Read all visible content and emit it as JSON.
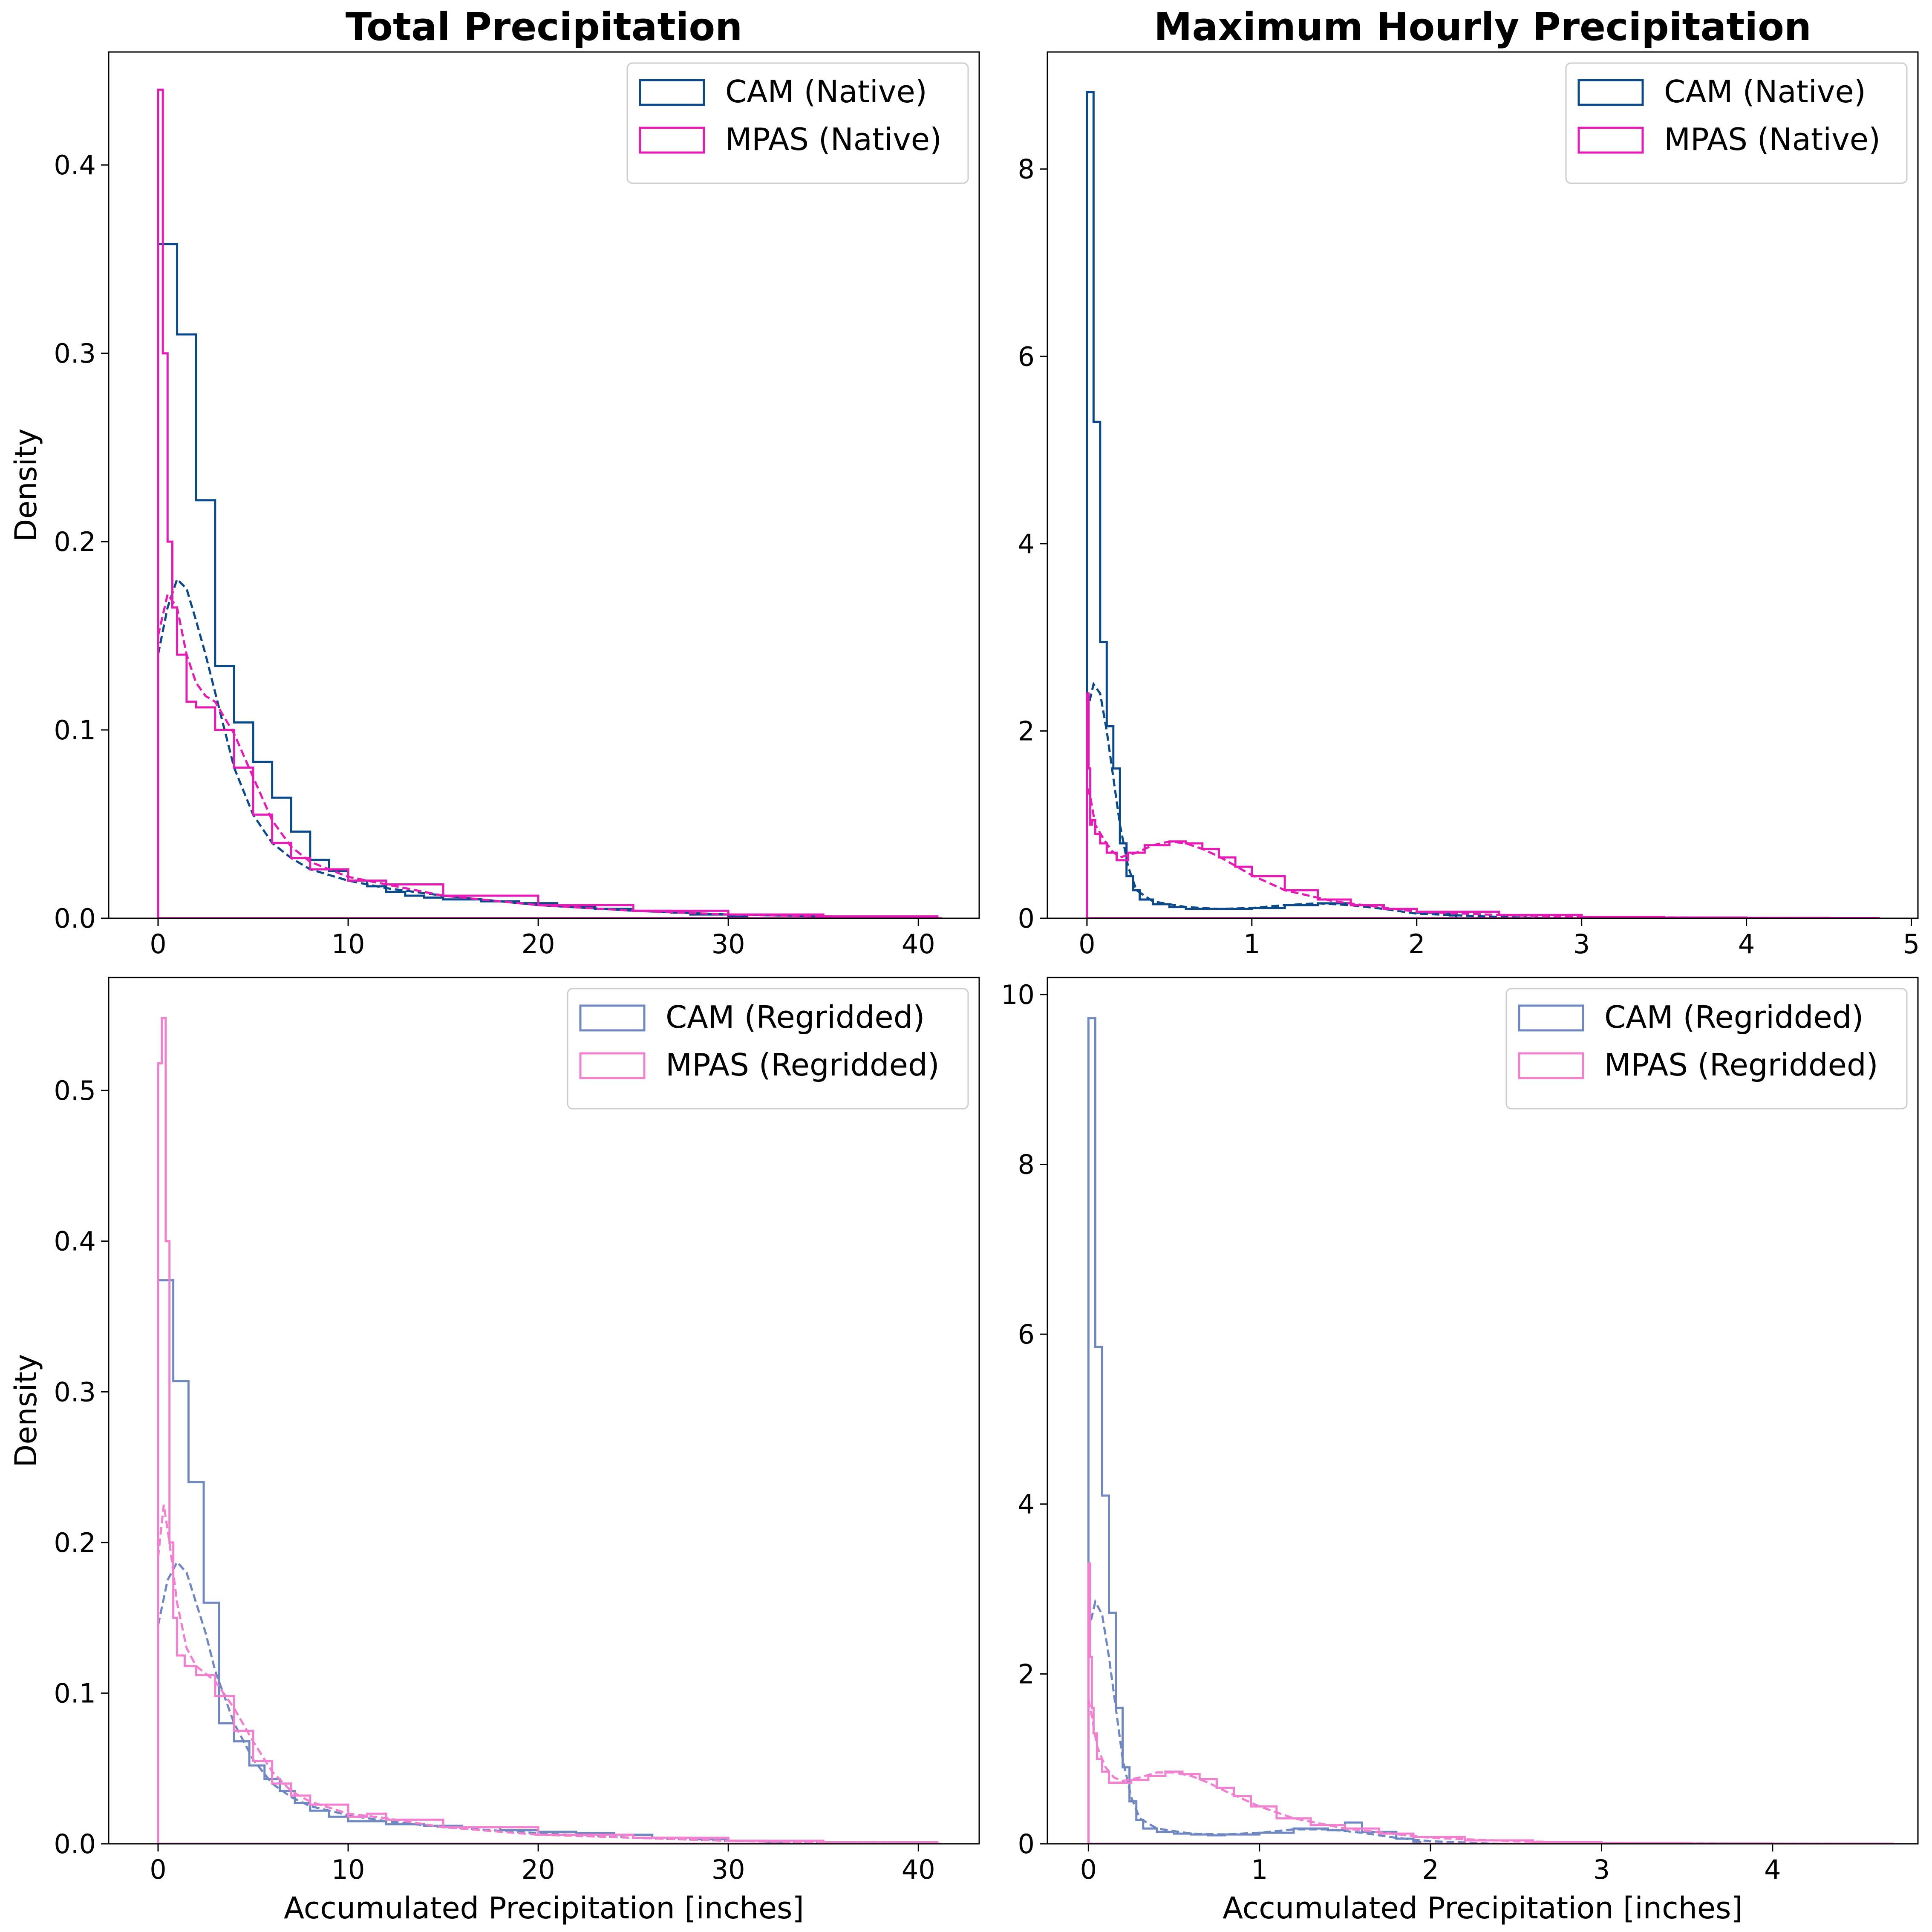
{
  "chart_data": [
    {
      "panel": "top-left",
      "type": "histogram",
      "title": "Total Precipitation",
      "xlabel": "",
      "ylabel": "Density",
      "xlim": [
        -2.6,
        43.2
      ],
      "ylim": [
        0,
        0.46
      ],
      "xticks": [
        0,
        10,
        20,
        30,
        40
      ],
      "yticks": [
        0.0,
        0.1,
        0.2,
        0.3,
        0.4
      ],
      "legend_position": "top-right",
      "grid": false,
      "series": [
        {
          "name": "CAM (Native)",
          "color": "#0b4a8a",
          "bin_width": 1.0,
          "hist_x": [
            0,
            1,
            2,
            3,
            4,
            5,
            6,
            7,
            8,
            9,
            10,
            11,
            12,
            13,
            14,
            15,
            16,
            17,
            18,
            19,
            20,
            21,
            22,
            23,
            24,
            25,
            26,
            27,
            28,
            29,
            30
          ],
          "hist_y": [
            0.358,
            0.31,
            0.222,
            0.134,
            0.104,
            0.083,
            0.064,
            0.046,
            0.031,
            0.025,
            0.02,
            0.017,
            0.014,
            0.012,
            0.011,
            0.01,
            0.01,
            0.009,
            0.009,
            0.008,
            0.008,
            0.007,
            0.006,
            0.005,
            0.005,
            0.004,
            0.004,
            0.003,
            0.002,
            0.002,
            0.001
          ],
          "kde_x": [
            0,
            0.5,
            1,
            1.5,
            2,
            2.5,
            3,
            4,
            5,
            6,
            7,
            8,
            10,
            12,
            15,
            20,
            25,
            30,
            35,
            41
          ],
          "kde_y": [
            0.14,
            0.165,
            0.18,
            0.175,
            0.158,
            0.14,
            0.12,
            0.08,
            0.055,
            0.04,
            0.032,
            0.026,
            0.02,
            0.016,
            0.012,
            0.007,
            0.004,
            0.002,
            0.001,
            0
          ]
        },
        {
          "name": "MPAS (Native)",
          "color": "#e61ab5",
          "bin_width": 0.25,
          "hist_x": [
            0,
            0.25,
            0.5,
            0.75,
            1,
            1.5,
            2,
            3,
            4,
            5,
            6,
            7,
            8,
            10,
            12,
            15,
            20,
            25,
            30,
            35,
            41
          ],
          "hist_y": [
            0.44,
            0.3,
            0.2,
            0.165,
            0.14,
            0.115,
            0.112,
            0.1,
            0.08,
            0.055,
            0.04,
            0.032,
            0.026,
            0.02,
            0.018,
            0.012,
            0.007,
            0.004,
            0.002,
            0.001,
            0
          ],
          "kde_x": [
            0,
            0.5,
            1,
            1.5,
            2,
            2.5,
            3,
            4,
            5,
            6,
            7,
            8,
            10,
            12,
            15,
            20,
            25,
            30,
            35,
            41
          ],
          "kde_y": [
            0.15,
            0.172,
            0.165,
            0.14,
            0.125,
            0.118,
            0.115,
            0.098,
            0.075,
            0.052,
            0.038,
            0.03,
            0.022,
            0.018,
            0.012,
            0.007,
            0.004,
            0.002,
            0.001,
            0
          ]
        }
      ]
    },
    {
      "panel": "top-right",
      "type": "histogram",
      "title": "Maximum Hourly Precipitation",
      "xlabel": "",
      "ylabel": "",
      "xlim": [
        -0.24,
        5.04
      ],
      "ylim": [
        0,
        9.25
      ],
      "xticks": [
        0,
        1,
        2,
        3,
        4,
        5
      ],
      "yticks": [
        0,
        2,
        4,
        6,
        8
      ],
      "legend_position": "top-right",
      "grid": false,
      "series": [
        {
          "name": "CAM (Native)",
          "color": "#0b4a8a",
          "bin_width": 0.04,
          "hist_x": [
            0,
            0.04,
            0.08,
            0.12,
            0.16,
            0.2,
            0.24,
            0.28,
            0.32,
            0.4,
            0.5,
            0.6,
            0.7,
            0.8,
            1.0,
            1.2,
            1.4,
            1.6,
            1.8,
            2.0,
            2.2
          ],
          "hist_y": [
            8.82,
            5.3,
            2.95,
            2.05,
            1.6,
            0.8,
            0.45,
            0.3,
            0.2,
            0.15,
            0.12,
            0.1,
            0.1,
            0.1,
            0.11,
            0.14,
            0.16,
            0.14,
            0.1,
            0.06,
            0.03
          ],
          "kde_x": [
            0,
            0.04,
            0.08,
            0.12,
            0.16,
            0.2,
            0.25,
            0.3,
            0.4,
            0.6,
            0.8,
            1.0,
            1.2,
            1.4,
            1.6,
            1.8,
            2.0,
            2.4,
            2.8
          ],
          "kde_y": [
            2.2,
            2.5,
            2.4,
            2.0,
            1.5,
            1.0,
            0.55,
            0.3,
            0.18,
            0.12,
            0.1,
            0.11,
            0.14,
            0.16,
            0.14,
            0.1,
            0.05,
            0.02,
            0
          ]
        },
        {
          "name": "MPAS (Native)",
          "color": "#e61ab5",
          "bin_width": 0.01,
          "hist_x": [
            0,
            0.01,
            0.02,
            0.03,
            0.05,
            0.08,
            0.12,
            0.18,
            0.25,
            0.35,
            0.5,
            0.6,
            0.7,
            0.8,
            0.9,
            1.0,
            1.2,
            1.4,
            1.6,
            1.8,
            2.0,
            2.5,
            3.0,
            3.5,
            4.0,
            4.5,
            4.8
          ],
          "hist_y": [
            2.4,
            1.6,
            1.0,
            1.05,
            0.9,
            0.8,
            0.7,
            0.62,
            0.7,
            0.78,
            0.82,
            0.8,
            0.74,
            0.65,
            0.55,
            0.45,
            0.3,
            0.2,
            0.14,
            0.1,
            0.07,
            0.035,
            0.015,
            0.008,
            0.004,
            0.002,
            0
          ],
          "kde_x": [
            0,
            0.02,
            0.05,
            0.1,
            0.15,
            0.2,
            0.3,
            0.4,
            0.5,
            0.6,
            0.7,
            0.8,
            1.0,
            1.2,
            1.5,
            2.0,
            2.5,
            3.0,
            4.0,
            4.8
          ],
          "kde_y": [
            1.4,
            1.3,
            1.0,
            0.85,
            0.72,
            0.65,
            0.7,
            0.78,
            0.82,
            0.8,
            0.74,
            0.66,
            0.46,
            0.3,
            0.18,
            0.07,
            0.035,
            0.015,
            0.004,
            0
          ]
        }
      ]
    },
    {
      "panel": "bottom-left",
      "type": "histogram",
      "title": "",
      "xlabel": "Accumulated Precipitation [inches]",
      "ylabel": "Density",
      "xlim": [
        -2.6,
        43.2
      ],
      "ylim": [
        0,
        0.575
      ],
      "xticks": [
        0,
        10,
        20,
        30,
        40
      ],
      "yticks": [
        0.0,
        0.1,
        0.2,
        0.3,
        0.4,
        0.5
      ],
      "legend_position": "top-right",
      "grid": false,
      "series": [
        {
          "name": "CAM (Regridded)",
          "color": "#6f88c2",
          "bin_width": 0.8,
          "hist_x": [
            0,
            0.8,
            1.6,
            2.4,
            3.2,
            4.0,
            4.8,
            5.6,
            6.4,
            7.2,
            8.0,
            9.0,
            10,
            12,
            14,
            16,
            18,
            20,
            22,
            24,
            26,
            28,
            30,
            32
          ],
          "hist_y": [
            0.374,
            0.307,
            0.24,
            0.16,
            0.08,
            0.068,
            0.052,
            0.043,
            0.035,
            0.027,
            0.022,
            0.018,
            0.015,
            0.013,
            0.012,
            0.011,
            0.009,
            0.008,
            0.007,
            0.006,
            0.004,
            0.003,
            0.002,
            0.001
          ],
          "kde_x": [
            0,
            0.5,
            1,
            1.5,
            2,
            2.5,
            3,
            4,
            5,
            6,
            7,
            8,
            10,
            12,
            15,
            20,
            25,
            30,
            35,
            41
          ],
          "kde_y": [
            0.145,
            0.175,
            0.187,
            0.18,
            0.16,
            0.14,
            0.115,
            0.08,
            0.056,
            0.04,
            0.031,
            0.025,
            0.019,
            0.015,
            0.011,
            0.007,
            0.004,
            0.002,
            0.001,
            0
          ]
        },
        {
          "name": "MPAS (Regridded)",
          "color": "#f27fcf",
          "bin_width": 0.2,
          "hist_x": [
            0,
            0.2,
            0.4,
            0.6,
            0.8,
            1.0,
            1.4,
            2.0,
            3.0,
            4.0,
            5.0,
            6.0,
            7.0,
            8.0,
            10,
            11,
            12,
            15,
            20,
            25,
            30,
            35,
            41
          ],
          "hist_y": [
            0.518,
            0.548,
            0.4,
            0.2,
            0.15,
            0.125,
            0.118,
            0.112,
            0.098,
            0.075,
            0.055,
            0.04,
            0.032,
            0.026,
            0.018,
            0.02,
            0.016,
            0.011,
            0.006,
            0.004,
            0.002,
            0.001,
            0
          ],
          "kde_x": [
            0,
            0.3,
            0.6,
            1,
            1.5,
            2,
            2.5,
            3,
            4,
            5,
            6,
            7,
            8,
            10,
            12,
            15,
            20,
            25,
            30,
            35,
            41
          ],
          "kde_y": [
            0.19,
            0.225,
            0.2,
            0.16,
            0.13,
            0.118,
            0.113,
            0.108,
            0.09,
            0.068,
            0.048,
            0.035,
            0.028,
            0.02,
            0.017,
            0.011,
            0.006,
            0.004,
            0.002,
            0.001,
            0
          ]
        }
      ]
    },
    {
      "panel": "bottom-right",
      "type": "histogram",
      "title": "",
      "xlabel": "Accumulated Precipitation [inches]",
      "ylabel": "",
      "xlim": [
        -0.24,
        4.85
      ],
      "ylim": [
        0,
        10.2
      ],
      "xticks": [
        0,
        1,
        2,
        3,
        4
      ],
      "yticks": [
        0,
        2,
        4,
        6,
        8,
        10
      ],
      "legend_position": "top-right",
      "grid": false,
      "series": [
        {
          "name": "CAM (Regridded)",
          "color": "#6f88c2",
          "bin_width": 0.04,
          "hist_x": [
            0,
            0.04,
            0.08,
            0.12,
            0.16,
            0.2,
            0.24,
            0.28,
            0.32,
            0.4,
            0.5,
            0.6,
            0.7,
            0.8,
            1.0,
            1.2,
            1.4,
            1.5,
            1.6,
            1.8,
            1.9
          ],
          "hist_y": [
            9.72,
            5.85,
            4.1,
            2.72,
            1.6,
            0.9,
            0.5,
            0.28,
            0.18,
            0.14,
            0.12,
            0.11,
            0.1,
            0.11,
            0.13,
            0.18,
            0.16,
            0.25,
            0.14,
            0.06,
            0.02
          ],
          "kde_x": [
            0,
            0.04,
            0.08,
            0.12,
            0.16,
            0.2,
            0.25,
            0.3,
            0.4,
            0.6,
            0.8,
            1.0,
            1.2,
            1.4,
            1.6,
            1.8,
            2.0,
            2.4
          ],
          "kde_y": [
            2.5,
            2.85,
            2.7,
            2.2,
            1.6,
            1.0,
            0.55,
            0.3,
            0.18,
            0.12,
            0.11,
            0.13,
            0.17,
            0.17,
            0.13,
            0.07,
            0.03,
            0
          ]
        },
        {
          "name": "MPAS (Regridded)",
          "color": "#f27fcf",
          "bin_width": 0.01,
          "hist_x": [
            0,
            0.01,
            0.02,
            0.03,
            0.05,
            0.08,
            0.12,
            0.18,
            0.25,
            0.35,
            0.45,
            0.55,
            0.65,
            0.75,
            0.85,
            0.95,
            1.1,
            1.3,
            1.5,
            1.7,
            1.9,
            2.2,
            2.6,
            3.0,
            3.5,
            4.0,
            4.7
          ],
          "hist_y": [
            3.3,
            2.2,
            1.6,
            1.3,
            1.0,
            0.85,
            0.72,
            0.72,
            0.75,
            0.8,
            0.85,
            0.82,
            0.76,
            0.66,
            0.56,
            0.44,
            0.3,
            0.22,
            0.18,
            0.12,
            0.08,
            0.04,
            0.02,
            0.01,
            0.005,
            0.002,
            0
          ],
          "kde_x": [
            0,
            0.02,
            0.05,
            0.1,
            0.15,
            0.2,
            0.3,
            0.4,
            0.5,
            0.6,
            0.7,
            0.8,
            1.0,
            1.2,
            1.5,
            2.0,
            2.5,
            3.0,
            4.0,
            4.7
          ],
          "kde_y": [
            1.7,
            1.5,
            1.15,
            0.9,
            0.78,
            0.74,
            0.78,
            0.84,
            0.84,
            0.8,
            0.72,
            0.62,
            0.44,
            0.3,
            0.18,
            0.07,
            0.03,
            0.012,
            0.003,
            0
          ]
        }
      ]
    }
  ]
}
